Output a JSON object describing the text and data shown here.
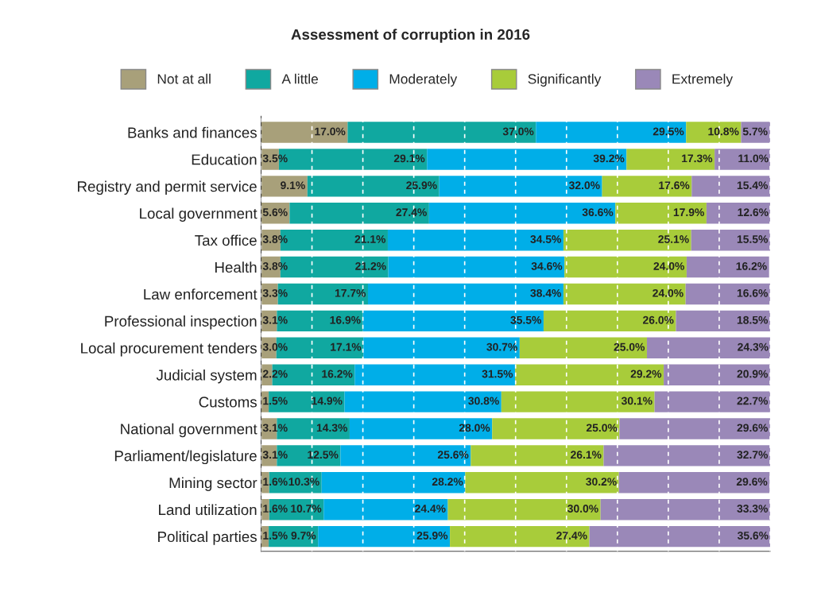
{
  "chart_data": {
    "type": "bar",
    "orientation": "horizontal",
    "stacked": true,
    "title": "Assessment of corruption in 2016",
    "categories": [
      "Banks and finances",
      "Education",
      "Registry and permit service",
      "Local government",
      "Tax office",
      "Health",
      "Law enforcement",
      "Professional inspection",
      "Local procurement tenders",
      "Judicial system",
      "Customs",
      "National government",
      "Parliament/legislature",
      "Mining sector",
      "Land utilization",
      "Political parties"
    ],
    "series": [
      {
        "name": "Not at all",
        "color": "#a8a07a",
        "values": [
          17.0,
          3.5,
          9.1,
          5.6,
          3.8,
          3.8,
          3.3,
          3.1,
          3.0,
          2.2,
          1.5,
          3.1,
          3.1,
          1.6,
          1.6,
          1.5
        ],
        "value_labels": [
          "17.0%",
          "3.5%",
          "9.1%",
          "5.6%",
          "3.8%",
          "3.8%",
          "3.3%",
          "3.1%",
          "3.0%",
          "2.2%",
          "1.5%",
          "3.1%",
          "3.1%",
          "1.6%",
          "1.6%",
          "1.5%"
        ]
      },
      {
        "name": "A little",
        "color": "#10a8a0",
        "values": [
          37.0,
          29.1,
          25.9,
          27.4,
          21.1,
          21.2,
          17.7,
          16.9,
          17.1,
          16.2,
          14.9,
          14.3,
          12.5,
          10.3,
          10.7,
          9.7
        ],
        "value_labels": [
          "37.0%",
          "29.1%",
          "25.9%",
          "27.4%",
          "21.1%",
          "21.2%",
          "17.7%",
          "16.9%",
          "17.1%",
          "16.2%",
          "14.9%",
          "14.3%",
          "12.5%",
          "10.3%",
          "10.7%",
          "9.7%"
        ]
      },
      {
        "name": "Moderately",
        "color": "#00aee8",
        "values": [
          29.5,
          39.2,
          32.0,
          36.6,
          34.5,
          34.6,
          38.4,
          35.5,
          30.7,
          31.5,
          30.8,
          28.0,
          25.6,
          28.2,
          24.4,
          25.9
        ],
        "value_labels": [
          "29.5%",
          "39.2%",
          "32.0%",
          "36.6%",
          "34.5%",
          "34.6%",
          "38.4%",
          "35.5%",
          "30.7%",
          "31.5%",
          "30.8%",
          "28.0%",
          "25.6%",
          "28.2%",
          "24.4%",
          "25.9%"
        ]
      },
      {
        "name": "Significantly",
        "color": "#a8cc3a",
        "values": [
          10.8,
          17.3,
          17.6,
          17.9,
          25.1,
          24.0,
          24.0,
          26.0,
          25.0,
          29.2,
          30.1,
          25.0,
          26.1,
          30.2,
          30.0,
          27.4
        ],
        "value_labels": [
          "10.8%",
          "17.3%",
          "17.6%",
          "17.9%",
          "25.1%",
          "24.0%",
          "24.0%",
          "26.0%",
          "25.0%",
          "29.2%",
          "30.1%",
          "25.0%",
          "26.1%",
          "30.2%",
          "30.0%",
          "27.4%"
        ]
      },
      {
        "name": "Extremely",
        "color": "#9a88b8",
        "values": [
          5.7,
          11.0,
          15.4,
          12.6,
          15.5,
          16.2,
          16.6,
          18.5,
          24.3,
          20.9,
          22.7,
          29.6,
          32.7,
          29.6,
          33.3,
          35.6
        ],
        "value_labels": [
          "5.7%",
          "11.0%",
          "15.4%",
          "12.6%",
          "15.5%",
          "16.2%",
          "16.6%",
          "18.5%",
          "24.3%",
          "20.9%",
          "22.7%",
          "29.6%",
          "32.7%",
          "29.6%",
          "33.3%",
          "35.6%"
        ]
      }
    ],
    "xlim": [
      0,
      100
    ],
    "xticks": [
      {
        "value": 0,
        "label": null
      },
      {
        "value": 10,
        "label": null
      },
      {
        "value": 20,
        "label": null
      },
      {
        "value": 30,
        "label": null
      },
      {
        "value": 40,
        "label": null
      },
      {
        "value": 50,
        "label": null
      },
      {
        "value": 60,
        "label": null
      },
      {
        "value": 70,
        "label": null
      },
      {
        "value": 80,
        "label": null
      },
      {
        "value": 90,
        "label": null
      },
      {
        "value": 100,
        "label": null
      }
    ],
    "tick_labels": "y",
    "grid": "x",
    "legend": "top"
  }
}
